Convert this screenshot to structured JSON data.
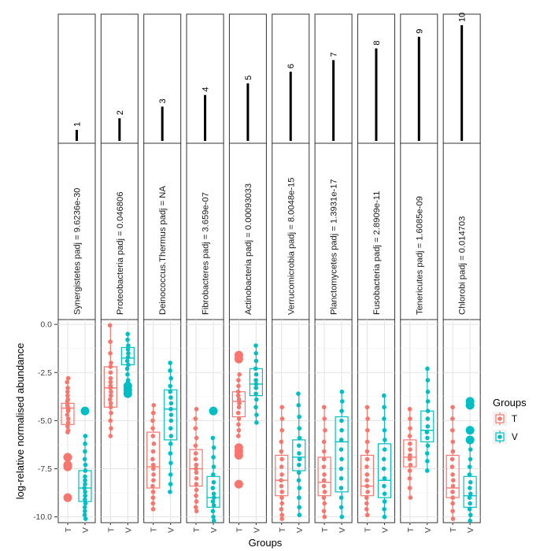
{
  "chart_data": {
    "type": "boxplot",
    "ylabel": "log-relative normalised abundance",
    "xlabel": "Groups",
    "ylim": [
      -10.3,
      0.25
    ],
    "yticks": [
      0.0,
      -2.5,
      -5.0,
      -7.5,
      -10.0
    ],
    "ytick_labels": [
      "0.0",
      "-2.5",
      "-5.0",
      "-7.5",
      "-10.0"
    ],
    "groups": [
      "T",
      "V"
    ],
    "legend": {
      "title": "Groups",
      "entries": [
        "T",
        "V"
      ],
      "position": "right"
    },
    "colors": {
      "T": "#F8766D",
      "V": "#00BFC4"
    },
    "rank_bar_max": 10,
    "panels": [
      {
        "rank": "1",
        "label": "Synergistetes padj = 9.6236e-30",
        "T": {
          "q1": -5.2,
          "median": -4.35,
          "q3": -4.1,
          "whisker_low": -5.6,
          "whisker_high": -2.8,
          "points": [
            -2.8,
            -3.0,
            -3.3,
            -3.5,
            -3.7,
            -3.9,
            -4.0,
            -4.2,
            -4.3,
            -4.4,
            -4.5,
            -4.7,
            -4.9,
            -5.1,
            -5.3,
            -5.5,
            -5.6
          ],
          "outliers": [
            -6.9,
            -7.3,
            -7.4,
            -9.0
          ]
        },
        "V": {
          "q1": -9.2,
          "median": -8.5,
          "q3": -7.6,
          "whisker_low": -10.1,
          "whisker_high": -5.8,
          "points": [
            -5.8,
            -6.2,
            -6.6,
            -7.0,
            -7.3,
            -7.6,
            -7.9,
            -8.1,
            -8.3,
            -8.5,
            -8.7,
            -8.9,
            -9.1,
            -9.3,
            -9.5,
            -9.7,
            -9.9,
            -10.1
          ],
          "outliers": [
            -4.5
          ]
        }
      },
      {
        "rank": "2",
        "label": "Proteobacteria padj = 0.046806",
        "T": {
          "q1": -4.3,
          "median": -3.3,
          "q3": -2.2,
          "whisker_low": -5.8,
          "whisker_high": -0.05,
          "points": [
            -0.05,
            -0.9,
            -1.5,
            -2.0,
            -2.2,
            -2.5,
            -2.8,
            -3.0,
            -3.2,
            -3.3,
            -3.5,
            -3.7,
            -3.9,
            -4.1,
            -4.3,
            -4.6,
            -5.0,
            -5.4,
            -5.8
          ],
          "outliers": []
        },
        "V": {
          "q1": -2.1,
          "median": -1.75,
          "q3": -1.2,
          "whisker_low": -3.0,
          "whisker_high": -0.5,
          "points": [
            -0.5,
            -0.8,
            -1.1,
            -1.3,
            -1.5,
            -1.7,
            -1.9,
            -2.1,
            -2.3,
            -2.6,
            -2.9,
            -3.0
          ],
          "outliers": [
            -3.2,
            -3.4,
            -3.6
          ]
        }
      },
      {
        "rank": "3",
        "label": "Deinococcus.Thermus padj = NA",
        "T": {
          "q1": -8.5,
          "median": -7.4,
          "q3": -5.6,
          "whisker_low": -9.6,
          "whisker_high": -4.2,
          "points": [
            -4.2,
            -4.6,
            -5.0,
            -5.4,
            -5.8,
            -6.2,
            -6.6,
            -7.0,
            -7.3,
            -7.5,
            -7.8,
            -8.1,
            -8.4,
            -8.7,
            -9.0,
            -9.3,
            -9.6
          ],
          "outliers": []
        },
        "V": {
          "q1": -6.0,
          "median": -4.4,
          "q3": -3.4,
          "whisker_low": -8.7,
          "whisker_high": -2.0,
          "points": [
            -2.0,
            -2.4,
            -2.8,
            -3.2,
            -3.5,
            -3.8,
            -4.1,
            -4.4,
            -4.7,
            -5.0,
            -5.4,
            -5.8,
            -6.2,
            -6.7,
            -7.2,
            -7.8,
            -8.3,
            -8.7
          ],
          "outliers": []
        }
      },
      {
        "rank": "4",
        "label": "Fibrobacteres padj = 3.659e-07",
        "T": {
          "q1": -8.4,
          "median": -7.5,
          "q3": -6.5,
          "whisker_low": -9.7,
          "whisker_high": -4.4,
          "points": [
            -4.4,
            -4.9,
            -5.4,
            -5.9,
            -6.3,
            -6.7,
            -7.0,
            -7.3,
            -7.5,
            -7.7,
            -8.0,
            -8.3,
            -8.6,
            -8.9,
            -9.2,
            -9.5,
            -9.7
          ],
          "outliers": []
        },
        "V": {
          "q1": -9.5,
          "median": -9.0,
          "q3": -7.9,
          "whisker_low": -10.2,
          "whisker_high": -5.9,
          "points": [
            -5.9,
            -6.4,
            -6.9,
            -7.4,
            -7.8,
            -8.2,
            -8.5,
            -8.8,
            -9.0,
            -9.2,
            -9.4,
            -9.7,
            -10.0,
            -10.2
          ],
          "outliers": [
            -4.5
          ]
        }
      },
      {
        "rank": "5",
        "label": "Actinobacteria padj = 0.00093033",
        "T": {
          "q1": -4.8,
          "median": -4.0,
          "q3": -3.5,
          "whisker_low": -5.8,
          "whisker_high": -2.6,
          "points": [
            -2.6,
            -2.9,
            -3.2,
            -3.5,
            -3.7,
            -3.9,
            -4.1,
            -4.3,
            -4.6,
            -4.9,
            -5.2,
            -5.5,
            -5.8
          ],
          "outliers": [
            -1.6,
            -1.8,
            -6.4,
            -6.6,
            -6.8,
            -8.3
          ]
        },
        "V": {
          "q1": -3.7,
          "median": -3.1,
          "q3": -2.3,
          "whisker_low": -5.1,
          "whisker_high": -1.1,
          "points": [
            -1.1,
            -1.5,
            -1.9,
            -2.3,
            -2.6,
            -2.9,
            -3.1,
            -3.3,
            -3.6,
            -3.9,
            -4.3,
            -4.7,
            -5.1
          ],
          "outliers": []
        }
      },
      {
        "rank": "6",
        "label": "Verrucomicrobia padj = 8.0048e-15",
        "T": {
          "q1": -8.9,
          "median": -8.1,
          "q3": -6.8,
          "whisker_low": -10.1,
          "whisker_high": -4.3,
          "points": [
            -4.3,
            -4.9,
            -5.5,
            -6.1,
            -6.6,
            -7.0,
            -7.4,
            -7.8,
            -8.1,
            -8.4,
            -8.7,
            -9.0,
            -9.3,
            -9.6,
            -9.9,
            -10.1
          ],
          "outliers": []
        },
        "V": {
          "q1": -7.6,
          "median": -6.9,
          "q3": -6.0,
          "whisker_low": -9.9,
          "whisker_high": -3.6,
          "points": [
            -3.6,
            -4.2,
            -4.8,
            -5.4,
            -5.9,
            -6.3,
            -6.7,
            -7.0,
            -7.3,
            -7.7,
            -8.1,
            -8.5,
            -9.0,
            -9.5,
            -9.9
          ],
          "outliers": []
        }
      },
      {
        "rank": "7",
        "label": "Planctomycetes padj = 1.3931e-17",
        "T": {
          "q1": -8.9,
          "median": -8.2,
          "q3": -6.9,
          "whisker_low": -10.0,
          "whisker_high": -4.3,
          "points": [
            -4.3,
            -4.9,
            -5.5,
            -6.1,
            -6.6,
            -7.0,
            -7.4,
            -7.8,
            -8.1,
            -8.4,
            -8.7,
            -9.0,
            -9.3,
            -9.7,
            -10.0
          ],
          "outliers": []
        },
        "V": {
          "q1": -8.7,
          "median": -6.1,
          "q3": -4.8,
          "whisker_low": -10.0,
          "whisker_high": -3.5,
          "points": [
            -3.5,
            -4.0,
            -4.5,
            -5.0,
            -5.5,
            -6.0,
            -6.5,
            -7.0,
            -7.5,
            -8.0,
            -8.5,
            -9.0,
            -9.5,
            -10.0
          ],
          "outliers": []
        }
      },
      {
        "rank": "8",
        "label": "Fusobacteria padj = 2.8909e-11",
        "T": {
          "q1": -8.9,
          "median": -8.4,
          "q3": -6.8,
          "whisker_low": -9.9,
          "whisker_high": -4.3,
          "points": [
            -4.3,
            -4.9,
            -5.5,
            -6.1,
            -6.6,
            -7.0,
            -7.4,
            -7.8,
            -8.1,
            -8.4,
            -8.7,
            -9.0,
            -9.3,
            -9.6,
            -9.9
          ],
          "outliers": []
        },
        "V": {
          "q1": -9.0,
          "median": -8.1,
          "q3": -6.2,
          "whisker_low": -10.0,
          "whisker_high": -3.7,
          "points": [
            -3.7,
            -4.3,
            -4.9,
            -5.5,
            -6.0,
            -6.5,
            -7.0,
            -7.5,
            -8.0,
            -8.4,
            -8.8,
            -9.2,
            -9.6,
            -10.0
          ],
          "outliers": []
        }
      },
      {
        "rank": "9",
        "label": "Tenericutes padj = 1.6085e-09",
        "T": {
          "q1": -7.4,
          "median": -6.9,
          "q3": -6.0,
          "whisker_low": -9.0,
          "whisker_high": -4.4,
          "points": [
            -4.4,
            -4.9,
            -5.4,
            -5.8,
            -6.2,
            -6.5,
            -6.8,
            -7.0,
            -7.3,
            -7.6,
            -8.0,
            -8.5,
            -9.0
          ],
          "outliers": []
        },
        "V": {
          "q1": -6.1,
          "median": -5.5,
          "q3": -4.5,
          "whisker_low": -7.6,
          "whisker_high": -2.3,
          "points": [
            -2.3,
            -2.9,
            -3.5,
            -4.0,
            -4.5,
            -4.9,
            -5.3,
            -5.6,
            -5.9,
            -6.3,
            -6.7,
            -7.1,
            -7.6
          ],
          "outliers": []
        }
      },
      {
        "rank": "10",
        "label": "Chlorobi padj = 0.014703",
        "T": {
          "q1": -9.0,
          "median": -8.5,
          "q3": -6.8,
          "whisker_low": -10.1,
          "whisker_high": -4.3,
          "points": [
            -4.3,
            -4.9,
            -5.5,
            -6.1,
            -6.6,
            -7.0,
            -7.4,
            -7.8,
            -8.1,
            -8.4,
            -8.7,
            -9.0,
            -9.3,
            -9.7,
            -10.1
          ],
          "outliers": []
        },
        "V": {
          "q1": -9.5,
          "median": -8.9,
          "q3": -7.9,
          "whisker_low": -10.2,
          "whisker_high": -6.0,
          "points": [
            -6.0,
            -6.5,
            -7.0,
            -7.4,
            -7.8,
            -8.2,
            -8.5,
            -8.8,
            -9.0,
            -9.3,
            -9.6,
            -9.9,
            -10.2
          ],
          "outliers": [
            -4.0,
            -4.2,
            -5.5,
            -6.0
          ]
        }
      }
    ]
  }
}
